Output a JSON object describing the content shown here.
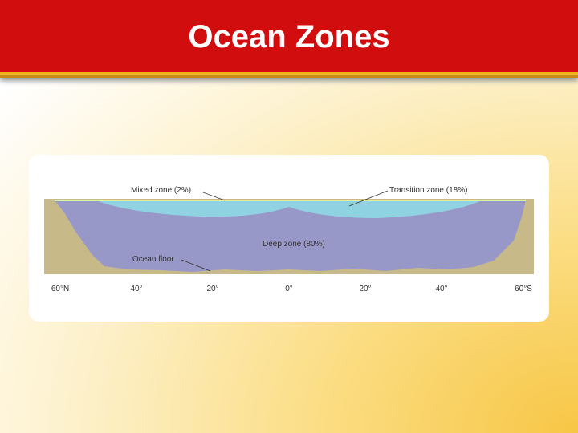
{
  "header": {
    "title": "Ocean Zones"
  },
  "diagram": {
    "labels": {
      "mixed": "Mixed zone (2%)",
      "transition": "Transition zone (18%)",
      "deep": "Deep zone (80%)",
      "floor": "Ocean floor"
    },
    "latitudes": [
      "60°N",
      "40°",
      "20°",
      "0°",
      "20°",
      "40°",
      "60°S"
    ]
  }
}
